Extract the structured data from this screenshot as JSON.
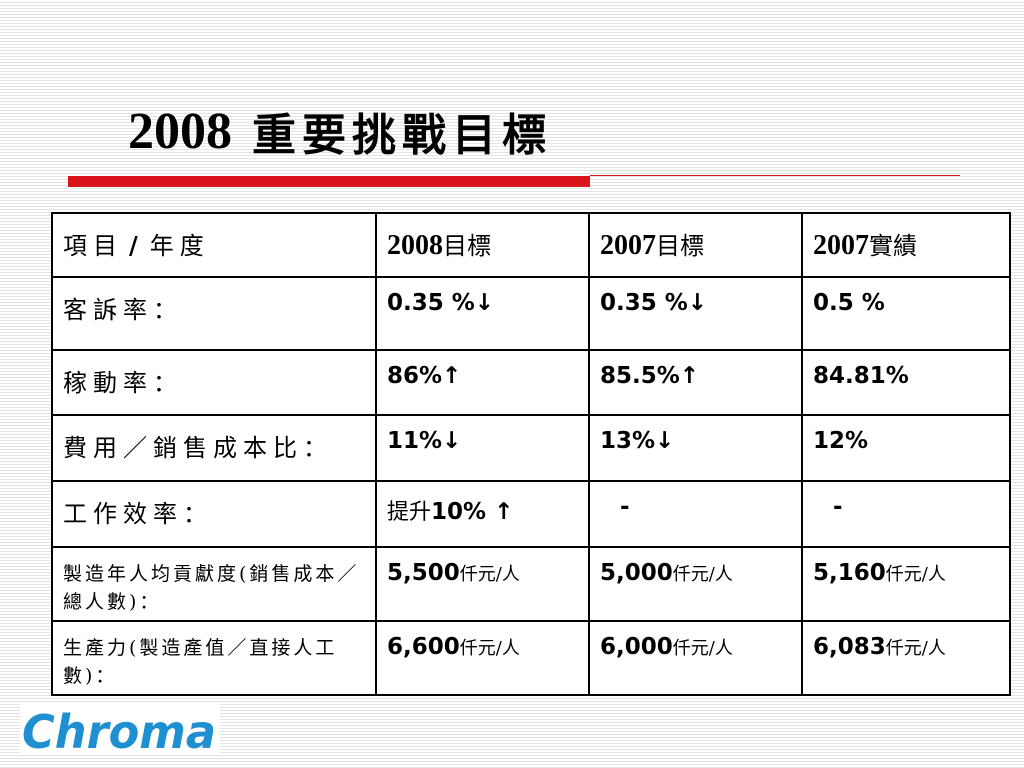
{
  "title": {
    "year": "2008",
    "text": "重要挑戰目標"
  },
  "table": {
    "header": {
      "label_a": "項目",
      "slash": "/",
      "label_b": "年度",
      "col2_year": "2008",
      "col2_suffix": "目標",
      "col3_year": "2007",
      "col3_suffix": "目標",
      "col4_year": "2007",
      "col4_suffix": "實績"
    },
    "rows": [
      {
        "label": "客訴率：",
        "v1": "0.35 %↓",
        "v2": "0.35 %↓",
        "v3": "0.5 %"
      },
      {
        "label": "稼動率：",
        "v1": "86%↑",
        "v2": "85.5%↑",
        "v3": "84.81%"
      },
      {
        "label": "費用／銷售成本比：",
        "v1": "11%↓",
        "v2": "13%↓",
        "v3": "12%"
      },
      {
        "label": "工作效率：",
        "v1_prefix": "提升",
        "v1": "10% ↑",
        "v2": "-",
        "v3": "-"
      },
      {
        "label": "製造年人均貢獻度(銷售成本／總人數)：",
        "v1": "5,500",
        "v2": "5,000",
        "v3": "5,160",
        "unit": "仟元/人"
      },
      {
        "label": "生產力(製造產值／直接人工數)：",
        "v1": "6,600",
        "v2": "6,000",
        "v3": "6,083",
        "unit": "仟元/人"
      }
    ]
  },
  "logo": {
    "text": "Chroma",
    "color": "#1e8fd0"
  },
  "colors": {
    "accent_red": "#d9141b",
    "logo_blue": "#1e8fd0"
  }
}
